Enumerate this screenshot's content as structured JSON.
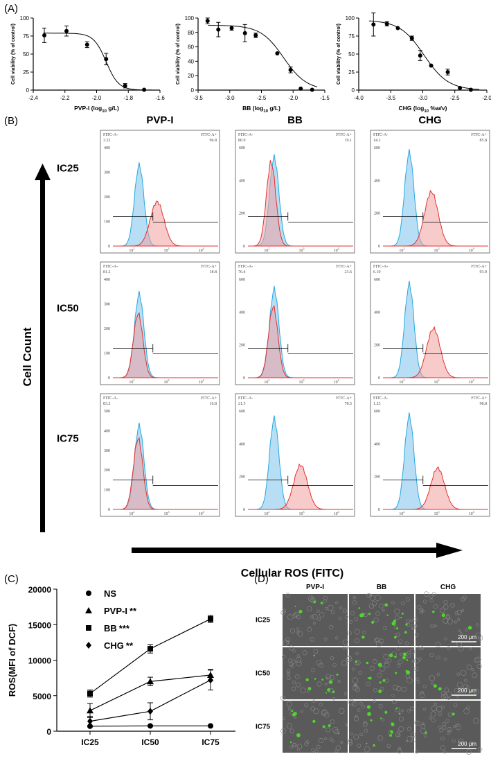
{
  "panels": {
    "a": "(A)",
    "b": "(B)",
    "c": "(C)",
    "d": "(D)"
  },
  "chart_data": [
    {
      "type": "scatter",
      "title": "",
      "xlabel_main": "PVP-I (log",
      "xlabel_sub": "10",
      "xlabel_tail": " g/L)",
      "ylabel": "Cell viability (% of control)",
      "xlim": [
        -2.4,
        -1.6
      ],
      "ylim": [
        0,
        100
      ],
      "xticks": [
        "-2.4",
        "-2.2",
        "-2.0",
        "-1.8",
        "-1.6"
      ],
      "yticks": [
        "0",
        "25",
        "50",
        "75",
        "100"
      ],
      "x": [
        -2.33,
        -2.19,
        -2.06,
        -1.94,
        -1.82,
        -1.7
      ],
      "y": [
        76,
        82,
        63,
        43,
        6,
        0.5
      ],
      "err": [
        10,
        7,
        4,
        8,
        3,
        0
      ],
      "curve": {
        "top": 79,
        "bottom": 0,
        "ec50": -1.94,
        "slope": 11
      }
    },
    {
      "type": "scatter",
      "title": "",
      "xlabel_main": "BB (log",
      "xlabel_sub": "10",
      "xlabel_tail": " g/L)",
      "ylabel": "Cell viability (% of control)",
      "xlim": [
        -3.5,
        -1.5
      ],
      "ylim": [
        0,
        100
      ],
      "xticks": [
        "-3.5",
        "-3.0",
        "-2.5",
        "-2.0",
        "-1.5"
      ],
      "yticks": [
        "0",
        "20",
        "40",
        "60",
        "80",
        "100"
      ],
      "x": [
        -3.35,
        -3.18,
        -2.97,
        -2.76,
        -2.59,
        -2.25,
        -2.04,
        -1.88,
        -1.7
      ],
      "y": [
        96,
        84,
        86,
        79,
        76,
        51,
        28,
        2,
        0.5
      ],
      "err": [
        4,
        10,
        3,
        12,
        3,
        0,
        4,
        0,
        0
      ],
      "curve": {
        "top": 90,
        "bottom": 0,
        "ec50": -2.15,
        "slope": 2.4
      }
    },
    {
      "type": "scatter",
      "title": "",
      "xlabel_main": "CHG (log",
      "xlabel_sub": "10",
      "xlabel_tail": " %w/v)",
      "ylabel": "Cell viability (% of control)",
      "xlim": [
        -4.0,
        -2.0
      ],
      "ylim": [
        0,
        100
      ],
      "xticks": [
        "-4.0",
        "-3.5",
        "-3.0",
        "-2.5",
        "-2.0"
      ],
      "yticks": [
        "0",
        "25",
        "50",
        "75",
        "100"
      ],
      "x": [
        -3.77,
        -3.56,
        -3.39,
        -3.17,
        -3.04,
        -2.87,
        -2.61,
        -2.42,
        -2.25
      ],
      "y": [
        91,
        92,
        86,
        72,
        48,
        34,
        25,
        3,
        0.5
      ],
      "err": [
        16,
        3,
        0,
        3,
        7,
        0,
        4,
        0,
        0
      ],
      "curve": {
        "top": 97,
        "bottom": 0,
        "ec50": -2.98,
        "slope": 2.3
      }
    },
    {
      "type": "line",
      "title": "",
      "xlabel": "",
      "ylabel": "ROS(MFI of DCF)",
      "categories": [
        "IC25",
        "IC50",
        "IC75"
      ],
      "ylim": [
        0,
        20000
      ],
      "yticks": [
        "0",
        "5000",
        "10000",
        "15000",
        "20000"
      ],
      "series": [
        {
          "name": "NS",
          "sig": "",
          "marker": "circle",
          "values": [
            700,
            750,
            750
          ],
          "err": [
            0,
            0,
            0
          ]
        },
        {
          "name": "PVP-I",
          "sig": "**",
          "marker": "triangle",
          "values": [
            2900,
            7000,
            7900
          ],
          "err": [
            1000,
            600,
            800
          ]
        },
        {
          "name": "BB",
          "sig": "***",
          "marker": "square",
          "values": [
            5300,
            11600,
            15800
          ],
          "err": [
            500,
            600,
            500
          ]
        },
        {
          "name": "CHG",
          "sig": "**",
          "marker": "diamond",
          "values": [
            1400,
            2800,
            7200
          ],
          "err": [
            700,
            1200,
            1400
          ]
        }
      ]
    }
  ],
  "flow": {
    "columns": [
      "PVP-I",
      "BB",
      "CHG"
    ],
    "rows": [
      "IC25",
      "IC50",
      "IC75"
    ],
    "y_axis_label": "Cell Count",
    "x_axis_label": "Cellular ROS (FITC)",
    "gate_neg_label": "FITC-A-",
    "gate_pos_label": "FITC-A+",
    "decade_labels": [
      "10",
      "10",
      "10"
    ],
    "decade_exps": [
      "2",
      "3",
      "4"
    ],
    "plots": [
      {
        "neg": "3.22",
        "pos": "96.8",
        "ymax": 400,
        "yticks": [
          "0",
          "100",
          "200",
          "300",
          "400"
        ],
        "blue_peak": 0.82,
        "red_peak": 0.45,
        "red_pos": 0.42,
        "gate": 0.62
      },
      {
        "neg": "80.9",
        "pos": "19.1",
        "ymax": 600,
        "yticks": [
          "0",
          "200",
          "400",
          "600"
        ],
        "blue_peak": 0.9,
        "red_peak": 0.85,
        "red_pos": 0.22,
        "gate": 0.62
      },
      {
        "neg": "14.2",
        "pos": "85.8",
        "ymax": 600,
        "yticks": [
          "0",
          "200",
          "400",
          "600"
        ],
        "blue_peak": 0.95,
        "red_peak": 0.55,
        "red_pos": 0.46,
        "gate": 0.62
      },
      {
        "neg": "81.2",
        "pos": "18.8",
        "ymax": 400,
        "yticks": [
          "0",
          "100",
          "200",
          "300",
          "400"
        ],
        "blue_peak": 0.85,
        "red_peak": 0.65,
        "red_pos": 0.24,
        "gate": 0.62
      },
      {
        "neg": "76.4",
        "pos": "23.6",
        "ymax": 600,
        "yticks": [
          "0",
          "200",
          "400",
          "600"
        ],
        "blue_peak": 0.9,
        "red_peak": 0.72,
        "red_pos": 0.24,
        "gate": 0.62
      },
      {
        "neg": "6.10",
        "pos": "93.9",
        "ymax": 600,
        "yticks": [
          "0",
          "200",
          "400",
          "600"
        ],
        "blue_peak": 0.95,
        "red_peak": 0.5,
        "red_pos": 0.48,
        "gate": 0.62
      },
      {
        "neg": "83.2",
        "pos": "16.8",
        "ymax": 500,
        "yticks": [
          "0",
          "100",
          "200",
          "300",
          "400",
          "500"
        ],
        "blue_peak": 0.85,
        "red_peak": 0.72,
        "red_pos": 0.24,
        "gate": 0.62
      },
      {
        "neg": "21.5",
        "pos": "78.5",
        "ymax": 600,
        "yticks": [
          "0",
          "200",
          "400",
          "600"
        ],
        "blue_peak": 0.92,
        "red_peak": 0.45,
        "red_pos": 0.5,
        "gate": 0.62
      },
      {
        "neg": "1.23",
        "pos": "98.8",
        "ymax": 600,
        "yticks": [
          "0",
          "200",
          "400",
          "600"
        ],
        "blue_peak": 0.95,
        "red_peak": 0.42,
        "red_pos": 0.52,
        "gate": 0.62
      }
    ]
  },
  "micro": {
    "columns": [
      "PVP-I",
      "BB",
      "CHG"
    ],
    "rows": [
      "IC25",
      "IC50",
      "IC75"
    ],
    "scale_bar": "200 μm",
    "background": "#5a5a5a",
    "fluor_color": "#4fd62c"
  }
}
